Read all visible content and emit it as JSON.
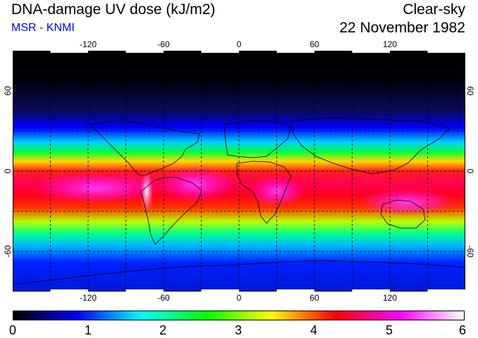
{
  "header": {
    "title": "DNA-damage UV dose (kJ/m2)",
    "source": "MSR - KNMI",
    "condition": "Clear-sky",
    "date": "22 November 1982"
  },
  "map": {
    "projection": "equirectangular",
    "lon_range": [
      -180,
      180
    ],
    "lat_range": [
      -90,
      90
    ],
    "lon_ticks": [
      "-120",
      "-60",
      "0",
      "60",
      "120"
    ],
    "lat_ticks": [
      "60",
      "0",
      "-60"
    ],
    "gridlines": "dashed every 30 degrees"
  },
  "legend": {
    "unit": "kJ/m2",
    "min": 0,
    "max": 6,
    "labels": [
      "0",
      "1",
      "2",
      "3",
      "4",
      "5",
      "6"
    ],
    "colors": [
      "#000000",
      "#0000ff",
      "#00ffff",
      "#00ff00",
      "#ffff00",
      "#ff0000",
      "#ff00ff",
      "#ffffff"
    ]
  }
}
